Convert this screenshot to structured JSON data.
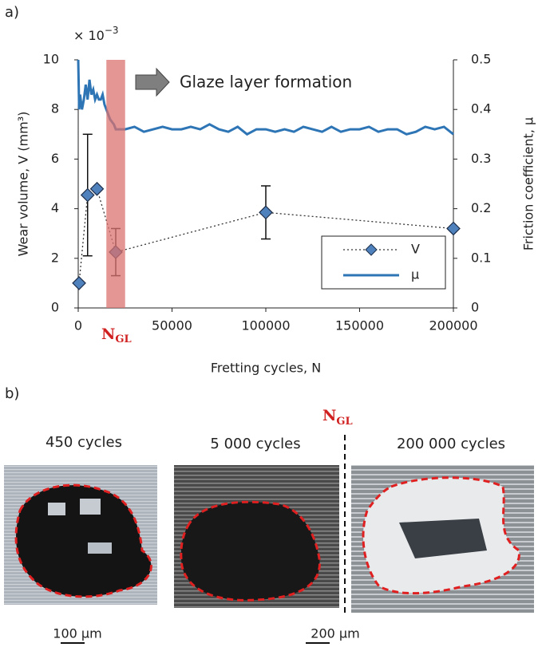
{
  "panel_labels": [
    "a)",
    "b)"
  ],
  "chart_data": {
    "type": "line",
    "x_label": "Fretting cycles, N",
    "y_label": "Wear volume, V (mm³)",
    "y2_label": "Friction coefficient, μ",
    "y_offset_label": {
      "base": "× 10",
      "exponent": "−3"
    },
    "annotation": "Glaze layer formation",
    "shaded_region": {
      "x": [
        15000,
        25000
      ],
      "color": "#d9736f",
      "label": {
        "main": "N",
        "sub": "GL"
      }
    },
    "xlim": [
      0,
      200000
    ],
    "xticks": [
      0,
      50000,
      100000,
      150000,
      200000
    ],
    "ylim": [
      0,
      10
    ],
    "yticks": [
      0,
      2,
      4,
      6,
      8,
      10
    ],
    "y2lim": [
      0,
      0.5
    ],
    "y2ticks": [
      0,
      0.1,
      0.2,
      0.3,
      0.4,
      0.5
    ],
    "legend": "lower right",
    "series": [
      {
        "name": "V",
        "color": "#4f81bd",
        "x": [
          450,
          5000,
          10000,
          20000,
          100000,
          200000
        ],
        "values": [
          1.0,
          4.55,
          4.8,
          2.25,
          3.85,
          3.2
        ],
        "errors": [
          null,
          2.45,
          null,
          0.95,
          1.07,
          null
        ]
      },
      {
        "name": "μ",
        "color": "#2e75b6",
        "axis": "y2",
        "x": [
          0,
          500,
          1000,
          2000,
          3000,
          4000,
          5000,
          6000,
          7000,
          8000,
          9000,
          10000,
          11000,
          12000,
          13000,
          14000,
          15000,
          16000,
          17000,
          18000,
          19000,
          20000,
          22000,
          25000,
          30000,
          35000,
          40000,
          45000,
          50000,
          55000,
          60000,
          65000,
          70000,
          75000,
          80000,
          85000,
          90000,
          95000,
          100000,
          105000,
          110000,
          115000,
          120000,
          125000,
          130000,
          135000,
          140000,
          145000,
          150000,
          155000,
          160000,
          165000,
          170000,
          175000,
          180000,
          185000,
          190000,
          195000,
          200000
        ],
        "values": [
          0.5,
          0.4,
          0.43,
          0.4,
          0.42,
          0.45,
          0.42,
          0.46,
          0.43,
          0.44,
          0.42,
          0.43,
          0.42,
          0.42,
          0.43,
          0.41,
          0.4,
          0.39,
          0.38,
          0.375,
          0.37,
          0.36,
          0.36,
          0.36,
          0.365,
          0.355,
          0.36,
          0.365,
          0.36,
          0.36,
          0.365,
          0.36,
          0.37,
          0.36,
          0.355,
          0.365,
          0.35,
          0.36,
          0.36,
          0.355,
          0.36,
          0.355,
          0.365,
          0.36,
          0.355,
          0.365,
          0.355,
          0.36,
          0.36,
          0.365,
          0.355,
          0.36,
          0.36,
          0.35,
          0.355,
          0.365,
          0.36,
          0.365,
          0.35
        ]
      }
    ]
  },
  "panel_b": {
    "images": [
      {
        "label": "450 cycles"
      },
      {
        "label": "5 000 cycles"
      },
      {
        "label": "200 000 cycles"
      }
    ],
    "ngl_label": {
      "main": "N",
      "sub": "GL"
    },
    "scale_bars": [
      "100 µm",
      "200 µm"
    ]
  }
}
